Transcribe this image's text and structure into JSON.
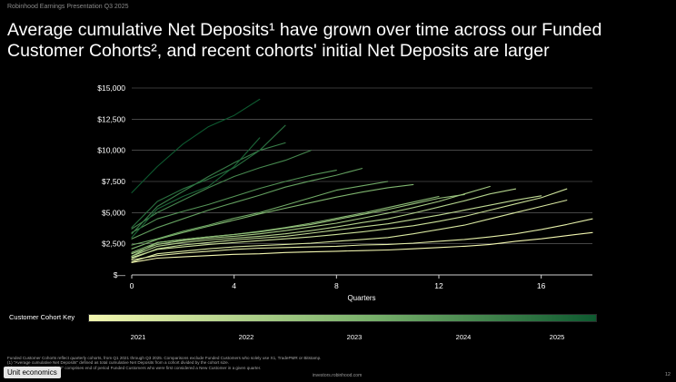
{
  "header": {
    "text": "Robinhood Earnings Presentation Q3 2025"
  },
  "title": "Average cumulative Net Deposits¹ have grown over time across our Funded Customer Cohorts², and recent cohorts' initial Net Deposits are larger",
  "colors": {
    "background": "#000000",
    "key_start": "#f3f7b0",
    "key_mid": "#7ab26c",
    "key_end": "#0e5a30",
    "grid": "#6f6f6f"
  },
  "chart_data": {
    "type": "line",
    "title": "",
    "xlabel": "Quarters",
    "ylabel": "",
    "xlim": [
      0,
      18
    ],
    "ylim": [
      0,
      15000
    ],
    "xticks": [
      0,
      4,
      8,
      12,
      16
    ],
    "yticks": [
      0,
      2500,
      5000,
      7500,
      10000,
      12500,
      15000
    ],
    "ytick_labels": [
      "$—",
      "$2,500",
      "$5,000",
      "$7,500",
      "$10,000",
      "$12,500",
      "$15,000"
    ],
    "grid": "horizontal",
    "series": [
      {
        "name": "cohort-1",
        "x": [
          0,
          1,
          2,
          3,
          4,
          5,
          6,
          7,
          8,
          9,
          10,
          11,
          12,
          13,
          14,
          15,
          16,
          17,
          18
        ],
        "values": [
          1000,
          1350,
          1450,
          1550,
          1650,
          1700,
          1800,
          1850,
          1900,
          1950,
          2000,
          2100,
          2200,
          2300,
          2450,
          2700,
          2900,
          3150,
          3400
        ]
      },
      {
        "name": "cohort-2",
        "x": [
          0,
          1,
          2,
          3,
          4,
          5,
          6,
          7,
          8,
          9,
          10,
          11,
          12,
          13,
          14,
          15,
          16,
          17,
          18
        ],
        "values": [
          1200,
          1550,
          1750,
          1900,
          2050,
          2150,
          2200,
          2250,
          2300,
          2400,
          2450,
          2550,
          2700,
          2850,
          3050,
          3300,
          3650,
          4050,
          4500
        ]
      },
      {
        "name": "cohort-3",
        "x": [
          0,
          1,
          2,
          3,
          4,
          5,
          6,
          7,
          8,
          9,
          10,
          11,
          12,
          13,
          14,
          15,
          16,
          17
        ],
        "values": [
          1050,
          1700,
          1900,
          2100,
          2250,
          2350,
          2450,
          2550,
          2700,
          2850,
          3000,
          3300,
          3650,
          4000,
          4500,
          5000,
          5500,
          6000
        ]
      },
      {
        "name": "cohort-4",
        "x": [
          0,
          1,
          2,
          3,
          4,
          5,
          6,
          7,
          8,
          9,
          10,
          11,
          12,
          13,
          14,
          15,
          16,
          17
        ],
        "values": [
          1400,
          2050,
          2250,
          2450,
          2600,
          2750,
          2900,
          3050,
          3250,
          3450,
          3700,
          3950,
          4300,
          4700,
          5200,
          5700,
          6200,
          6900
        ]
      },
      {
        "name": "cohort-5",
        "x": [
          0,
          1,
          2,
          3,
          4,
          5,
          6,
          7,
          8,
          9,
          10,
          11,
          12,
          13,
          14,
          15,
          16
        ],
        "values": [
          1300,
          2100,
          2400,
          2600,
          2800,
          2950,
          3100,
          3350,
          3600,
          3850,
          4100,
          4450,
          4800,
          5200,
          5600,
          6000,
          6350
        ]
      },
      {
        "name": "cohort-6",
        "x": [
          0,
          1,
          2,
          3,
          4,
          5,
          6,
          7,
          8,
          9,
          10,
          11,
          12,
          13,
          14,
          15
        ],
        "values": [
          1500,
          2300,
          2600,
          2800,
          2950,
          3100,
          3300,
          3550,
          3850,
          4200,
          4500,
          4950,
          5450,
          5950,
          6500,
          6900
        ]
      },
      {
        "name": "cohort-7",
        "x": [
          0,
          1,
          2,
          3,
          4,
          5,
          6,
          7,
          8,
          9,
          10,
          11,
          12,
          13,
          14
        ],
        "values": [
          1700,
          2450,
          2750,
          2950,
          3100,
          3300,
          3550,
          3850,
          4150,
          4550,
          4950,
          5400,
          5900,
          6500,
          7100
        ]
      },
      {
        "name": "cohort-8",
        "x": [
          0,
          1,
          2,
          3,
          4,
          5,
          6,
          7,
          8,
          9,
          10,
          11,
          12,
          13
        ],
        "values": [
          1500,
          2600,
          2850,
          3050,
          3250,
          3450,
          3750,
          4050,
          4450,
          4850,
          5250,
          5700,
          6150,
          6450
        ]
      },
      {
        "name": "cohort-9",
        "x": [
          0,
          1,
          2,
          3,
          4,
          5,
          6,
          7,
          8,
          9,
          10,
          11,
          12
        ],
        "values": [
          1800,
          2600,
          2850,
          3050,
          3250,
          3500,
          3800,
          4150,
          4550,
          4950,
          5400,
          5850,
          6300
        ]
      },
      {
        "name": "cohort-10",
        "x": [
          0,
          1,
          2,
          3,
          4,
          5,
          6,
          7,
          8,
          9,
          10,
          11
        ],
        "values": [
          2100,
          2850,
          3400,
          3900,
          4400,
          4900,
          5350,
          5800,
          6250,
          6650,
          7000,
          7250
        ]
      },
      {
        "name": "cohort-11",
        "x": [
          0,
          1,
          2,
          3,
          4,
          5,
          6,
          7,
          8,
          9,
          10
        ],
        "values": [
          2400,
          2900,
          3500,
          4000,
          4550,
          5000,
          5600,
          6200,
          6800,
          7150,
          7500
        ]
      },
      {
        "name": "cohort-12",
        "x": [
          0,
          1,
          2,
          3,
          4,
          5,
          6,
          7,
          8,
          9
        ],
        "values": [
          2900,
          3800,
          4500,
          5200,
          5800,
          6400,
          7050,
          7550,
          8000,
          8550
        ]
      },
      {
        "name": "cohort-13",
        "x": [
          0,
          1,
          2,
          3,
          4,
          5,
          6,
          7,
          8
        ],
        "values": [
          3400,
          4500,
          5100,
          5650,
          6300,
          6950,
          7500,
          8000,
          8400
        ]
      },
      {
        "name": "cohort-14",
        "x": [
          0,
          1,
          2,
          3,
          4,
          5,
          6,
          7
        ],
        "values": [
          3700,
          5000,
          6000,
          7000,
          7900,
          8600,
          9200,
          10000
        ]
      },
      {
        "name": "cohort-15",
        "x": [
          0,
          1,
          2,
          3,
          4,
          5,
          6
        ],
        "values": [
          3300,
          5500,
          6700,
          7900,
          9000,
          10000,
          10600
        ]
      },
      {
        "name": "cohort-16",
        "x": [
          0,
          1,
          2,
          3,
          4,
          5,
          6
        ],
        "values": [
          3800,
          5900,
          6900,
          7700,
          8600,
          10000,
          12000
        ]
      },
      {
        "name": "cohort-17",
        "x": [
          0,
          1,
          2,
          3,
          4,
          5
        ],
        "values": [
          3000,
          5300,
          6300,
          7100,
          8700,
          11000
        ]
      },
      {
        "name": "cohort-18",
        "x": [
          0,
          1,
          2,
          3,
          4,
          5
        ],
        "values": [
          6600,
          8700,
          10500,
          11900,
          12800,
          14100
        ]
      }
    ]
  },
  "key": {
    "label": "Customer Cohort Key",
    "years": [
      "2021",
      "2022",
      "2023",
      "2024",
      "2025"
    ]
  },
  "footnotes": [
    "Funded Customer Cohorts reflect quarterly cohorts, from Q1 2021 through Q3 2025. Comparisons exclude Funded Customers who solely use X1, TradePMR or Bitstamp.",
    "(1) \"Average cumulative Net Deposits\" defined as total cumulative Net Deposits from a cohort divided by the cohort size.",
    "(2) \"Funded Customer Cohort\" comprises end of period Funded Customers who were first considered a New Customer in a given quarter."
  ],
  "section_pill": "Unit economics",
  "url": "investors.robinhood.com",
  "page_number": "12"
}
